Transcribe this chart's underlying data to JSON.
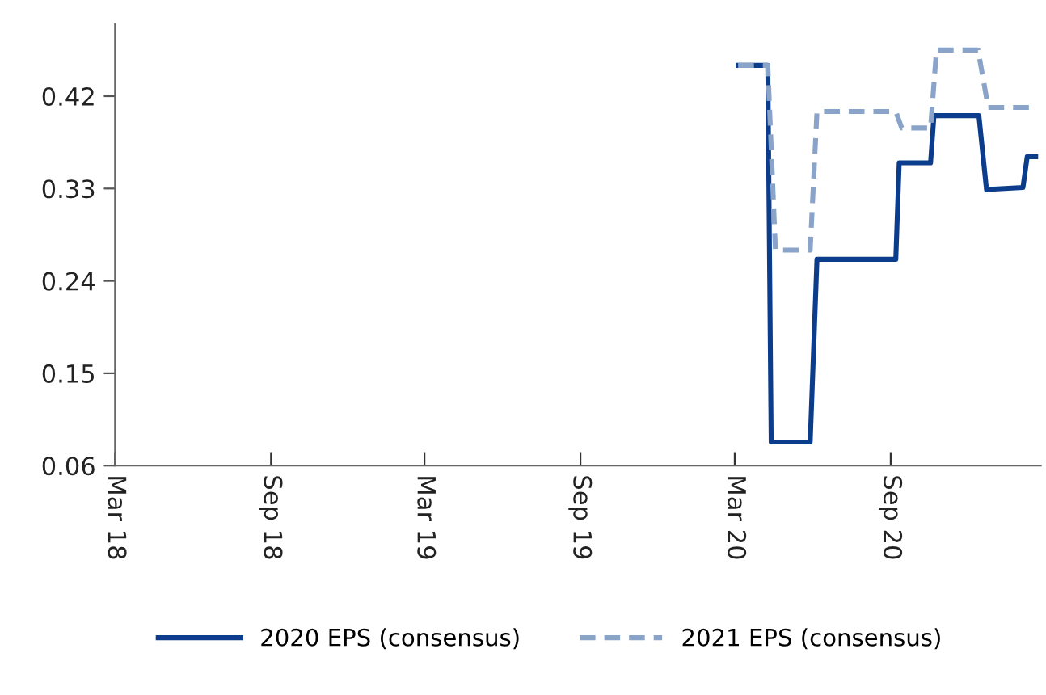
{
  "chart_data": {
    "type": "line",
    "series": [
      {
        "name": "2020 EPS (consensus)",
        "color": "#0b3d8c",
        "line_style": "solid",
        "x": [
          "2020-03-05",
          "2020-04-09",
          "2020-04-13",
          "2020-05-29",
          "2020-06-06",
          "2020-09-07",
          "2020-09-11",
          "2020-10-18",
          "2020-10-22",
          "2020-12-14",
          "2020-12-23",
          "2021-02-04",
          "2021-02-09",
          "2021-02-19"
        ],
        "values": [
          0.45,
          0.45,
          0.083,
          0.083,
          0.261,
          0.261,
          0.355,
          0.355,
          0.401,
          0.401,
          0.329,
          0.331,
          0.361,
          0.361
        ]
      },
      {
        "name": "2021 EPS (consensus)",
        "color": "#8aa3c8",
        "line_style": "dashed",
        "x": [
          "2020-03-05",
          "2020-04-09",
          "2020-04-18",
          "2020-05-29",
          "2020-06-06",
          "2020-09-07",
          "2020-09-14",
          "2020-10-18",
          "2020-10-25",
          "2020-12-13",
          "2020-12-25",
          "2021-02-13"
        ],
        "values": [
          0.45,
          0.45,
          0.27,
          0.27,
          0.405,
          0.405,
          0.389,
          0.389,
          0.465,
          0.465,
          0.409,
          0.409
        ]
      }
    ],
    "xlim": [
      "2018-03-01",
      "2021-02-25"
    ],
    "xticks": [
      {
        "value": "2018-03-01",
        "label": "Mar 18"
      },
      {
        "value": "2018-09-01",
        "label": "Sep 18"
      },
      {
        "value": "2019-03-01",
        "label": "Mar 19"
      },
      {
        "value": "2019-09-01",
        "label": "Sep 19"
      },
      {
        "value": "2020-03-01",
        "label": "Mar 20"
      },
      {
        "value": "2020-09-01",
        "label": "Sep 20"
      }
    ],
    "ylim": [
      0.06,
      0.49
    ],
    "yticks": [
      0.06,
      0.15,
      0.24,
      0.33,
      0.42
    ],
    "grid": false,
    "legend": "bottom"
  }
}
